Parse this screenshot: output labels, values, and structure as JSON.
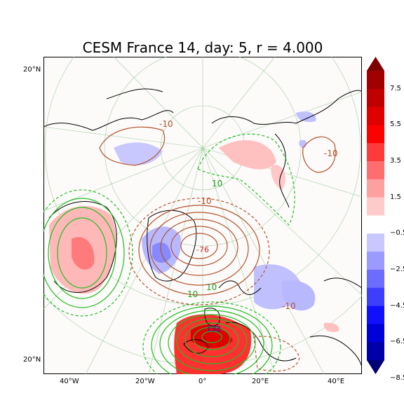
{
  "title": "CESM France 14, day: 5, r = 4.000",
  "lat_labels": {
    "top": "20°N",
    "bottom": "20°N"
  },
  "lon_labels": [
    "40°W",
    "20°W",
    "0°",
    "20°E",
    "40°E"
  ],
  "contour_labels": {
    "center_low": "-76",
    "high": "133",
    "minus10_a": "-10",
    "minus10_b": "-10",
    "minus10_c": "-10",
    "plus10_a": "10",
    "plus10_b": "10",
    "plus10_c": "10",
    "minus10_d": "-10"
  },
  "colorbar": {
    "ticks": [
      "7.5",
      "5.5",
      "3.5",
      "1.5",
      "−0.5",
      "−2.5",
      "−4.5",
      "−6.5",
      "−8.5"
    ],
    "colors": [
      "#7f0000",
      "#a00000",
      "#c00000",
      "#e00000",
      "#ff0000",
      "#ff3a3a",
      "#ff6e6e",
      "#ffa0a0",
      "#ffcaca",
      "#ffffff",
      "#c8c8ff",
      "#9a9aff",
      "#6c6cff",
      "#3e3eff",
      "#1010ff",
      "#0000d8",
      "#0000a8",
      "#000078"
    ]
  },
  "colors": {
    "low_contour": "#b4532a",
    "high_contour": "#1fbf1f",
    "positive_shade": "#ffb0b0",
    "negative_shade": "#b0b0ff"
  }
}
